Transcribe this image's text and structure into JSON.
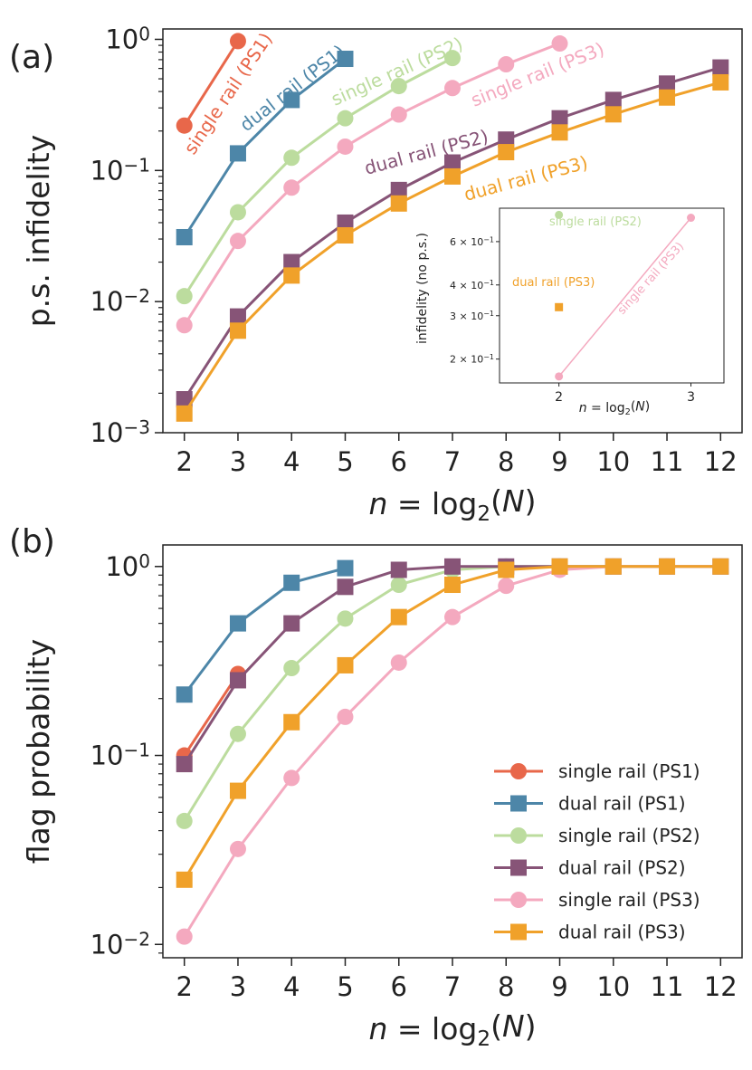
{
  "colors": {
    "single_rail_PS1": "#e8674a",
    "dual_rail_PS1": "#4d86a8",
    "single_rail_PS2": "#bcdc9e",
    "dual_rail_PS2": "#875477",
    "single_rail_PS3": "#f4a9bf",
    "dual_rail_PS3": "#f0a12a"
  },
  "chart_data": [
    {
      "type": "line",
      "panel_label": "(a)",
      "xlabel": "n = log2(N)",
      "ylabel": "p.s. infidelity",
      "yscale": "log",
      "ylim": [
        0.001,
        1.2
      ],
      "xlim": [
        1.6,
        12.4
      ],
      "x_ticks": [
        "2",
        "3",
        "4",
        "5",
        "6",
        "7",
        "8",
        "9",
        "10",
        "11",
        "12"
      ],
      "y_ticks": [
        {
          "value": 0.001,
          "base": "10",
          "exp": "−3"
        },
        {
          "value": 0.01,
          "base": "10",
          "exp": "−2"
        },
        {
          "value": 0.1,
          "base": "10",
          "exp": "−1"
        },
        {
          "value": 1,
          "base": "10",
          "exp": "0"
        }
      ],
      "series": [
        {
          "name": "single rail (PS1)",
          "color_key": "single_rail_PS1",
          "marker": "circle",
          "x": [
            2,
            3
          ],
          "values": [
            0.22,
            0.97
          ]
        },
        {
          "name": "dual rail (PS1)",
          "color_key": "dual_rail_PS1",
          "marker": "square",
          "x": [
            2,
            3,
            4,
            5
          ],
          "values": [
            0.031,
            0.135,
            0.345,
            0.71
          ]
        },
        {
          "name": "single rail (PS2)",
          "color_key": "single_rail_PS2",
          "marker": "circle",
          "x": [
            2,
            3,
            4,
            5,
            6,
            7
          ],
          "values": [
            0.011,
            0.048,
            0.125,
            0.25,
            0.44,
            0.72
          ]
        },
        {
          "name": "dual rail (PS2)",
          "color_key": "dual_rail_PS2",
          "marker": "square",
          "x": [
            2,
            3,
            4,
            5,
            6,
            7,
            8,
            9,
            10,
            11,
            12
          ],
          "values": [
            0.0018,
            0.0077,
            0.02,
            0.04,
            0.071,
            0.115,
            0.172,
            0.25,
            0.345,
            0.46,
            0.61
          ]
        },
        {
          "name": "single rail (PS3)",
          "color_key": "single_rail_PS3",
          "marker": "circle",
          "x": [
            2,
            3,
            4,
            5,
            6,
            7,
            8,
            9
          ],
          "values": [
            0.0066,
            0.029,
            0.074,
            0.152,
            0.267,
            0.425,
            0.645,
            0.93
          ]
        },
        {
          "name": "dual rail (PS3)",
          "color_key": "dual_rail_PS3",
          "marker": "square",
          "x": [
            2,
            3,
            4,
            5,
            6,
            7,
            8,
            9,
            10,
            11,
            12
          ],
          "values": [
            0.0014,
            0.006,
            0.0158,
            0.032,
            0.056,
            0.09,
            0.138,
            0.195,
            0.268,
            0.36,
            0.47
          ]
        }
      ],
      "annotations": [
        {
          "text": "single rail (PS1)",
          "color_key": "single_rail_PS1"
        },
        {
          "text": "dual rail (PS1)",
          "color_key": "dual_rail_PS1"
        },
        {
          "text": "single rail (PS2)",
          "color_key": "single_rail_PS2"
        },
        {
          "text": "single rail (PS3)",
          "color_key": "single_rail_PS3"
        },
        {
          "text": "dual rail (PS2)",
          "color_key": "dual_rail_PS2"
        },
        {
          "text": "dual rail (PS3)",
          "color_key": "dual_rail_PS3"
        }
      ],
      "inset": {
        "xlabel": "n = log2(N)",
        "ylabel": "infidelity (no p.s.)",
        "yscale": "log",
        "xlim": [
          1.55,
          3.25
        ],
        "ylim": [
          0.16,
          0.82
        ],
        "x_ticks": [
          "2",
          "3"
        ],
        "y_ticks": [
          {
            "value": 0.2,
            "mant": "2",
            "exp": "−1"
          },
          {
            "value": 0.3,
            "mant": "3",
            "exp": "−1"
          },
          {
            "value": 0.4,
            "mant": "4",
            "exp": "−1"
          },
          {
            "value": 0.6,
            "mant": "6",
            "exp": "−1"
          }
        ],
        "series": [
          {
            "name": "single rail (PS2)",
            "color_key": "single_rail_PS2",
            "marker": "circle",
            "x": [
              2
            ],
            "values": [
              0.77
            ]
          },
          {
            "name": "dual rail (PS3)",
            "color_key": "dual_rail_PS3",
            "marker": "square",
            "x": [
              2
            ],
            "values": [
              0.325
            ]
          },
          {
            "name": "single rail (PS3)",
            "color_key": "single_rail_PS3",
            "marker": "circle",
            "x": [
              2,
              3
            ],
            "values": [
              0.17,
              0.75
            ]
          }
        ],
        "annotations": [
          {
            "text": "single rail (PS2)",
            "color_key": "single_rail_PS2"
          },
          {
            "text": "dual rail (PS3)",
            "color_key": "dual_rail_PS3"
          },
          {
            "text": "single rail (PS3)",
            "color_key": "single_rail_PS3"
          }
        ]
      }
    },
    {
      "type": "line",
      "panel_label": "(b)",
      "xlabel": "n = log2(N)",
      "ylabel": "flag probability",
      "yscale": "log",
      "ylim": [
        0.0085,
        1.3
      ],
      "xlim": [
        1.6,
        12.4
      ],
      "x_ticks": [
        "2",
        "3",
        "4",
        "5",
        "6",
        "7",
        "8",
        "9",
        "10",
        "11",
        "12"
      ],
      "y_ticks": [
        {
          "value": 0.01,
          "base": "10",
          "exp": "−2"
        },
        {
          "value": 0.1,
          "base": "10",
          "exp": "−1"
        },
        {
          "value": 1,
          "base": "10",
          "exp": "0"
        }
      ],
      "series": [
        {
          "name": "single rail (PS1)",
          "color_key": "single_rail_PS1",
          "marker": "circle",
          "x": [
            2,
            3
          ],
          "values": [
            0.1,
            0.27
          ]
        },
        {
          "name": "dual rail (PS1)",
          "color_key": "dual_rail_PS1",
          "marker": "square",
          "x": [
            2,
            3,
            4,
            5
          ],
          "values": [
            0.21,
            0.5,
            0.82,
            0.98
          ]
        },
        {
          "name": "single rail (PS2)",
          "color_key": "single_rail_PS2",
          "marker": "circle",
          "x": [
            2,
            3,
            4,
            5,
            6,
            7,
            8,
            9,
            10,
            11,
            12
          ],
          "values": [
            0.045,
            0.13,
            0.29,
            0.53,
            0.8,
            0.96,
            1.0,
            1.0,
            1.0,
            1.0,
            1.0
          ]
        },
        {
          "name": "dual rail (PS2)",
          "color_key": "dual_rail_PS2",
          "marker": "square",
          "x": [
            2,
            3,
            4,
            5,
            6,
            7,
            8,
            9,
            10,
            11,
            12
          ],
          "values": [
            0.09,
            0.25,
            0.5,
            0.78,
            0.96,
            1.0,
            1.0,
            1.0,
            1.0,
            1.0,
            1.0
          ]
        },
        {
          "name": "single rail (PS3)",
          "color_key": "single_rail_PS3",
          "marker": "circle",
          "x": [
            2,
            3,
            4,
            5,
            6,
            7,
            8,
            9,
            10,
            11,
            12
          ],
          "values": [
            0.011,
            0.032,
            0.076,
            0.16,
            0.31,
            0.54,
            0.79,
            0.96,
            1.0,
            1.0,
            1.0
          ]
        },
        {
          "name": "dual rail (PS3)",
          "color_key": "dual_rail_PS3",
          "marker": "square",
          "x": [
            2,
            3,
            4,
            5,
            6,
            7,
            8,
            9,
            10,
            11,
            12
          ],
          "values": [
            0.022,
            0.065,
            0.15,
            0.3,
            0.54,
            0.8,
            0.96,
            1.0,
            1.0,
            1.0,
            1.0
          ]
        }
      ],
      "legend": {
        "position": "lower-right",
        "entries": [
          {
            "label": "single rail (PS1)",
            "color_key": "single_rail_PS1",
            "marker": "circle"
          },
          {
            "label": "dual rail (PS1)",
            "color_key": "dual_rail_PS1",
            "marker": "square"
          },
          {
            "label": "single rail (PS2)",
            "color_key": "single_rail_PS2",
            "marker": "circle"
          },
          {
            "label": "dual rail (PS2)",
            "color_key": "dual_rail_PS2",
            "marker": "square"
          },
          {
            "label": "single rail (PS3)",
            "color_key": "single_rail_PS3",
            "marker": "circle"
          },
          {
            "label": "dual rail (PS3)",
            "color_key": "dual_rail_PS3",
            "marker": "square"
          }
        ]
      }
    }
  ]
}
